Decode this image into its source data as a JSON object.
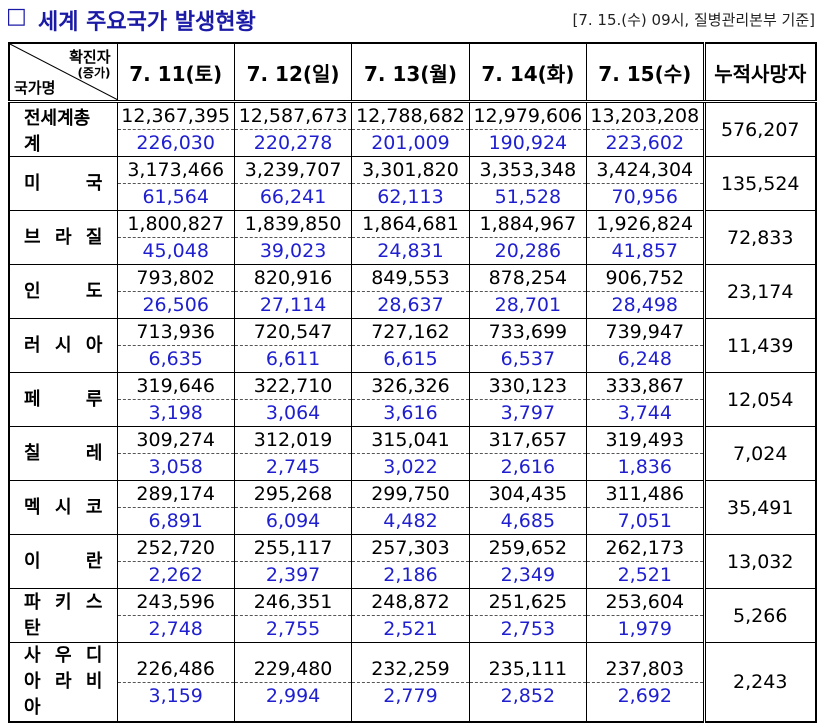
{
  "header": {
    "box": "□",
    "title": "세계 주요국가 발생현황",
    "source": "[7. 15.(수) 09시, 질병관리본부 기준]"
  },
  "table": {
    "corner": {
      "top": "확진자",
      "sub": "(증가)",
      "left": "국가명"
    },
    "columns": [
      "7. 11(토)",
      "7. 12(일)",
      "7. 13(월)",
      "7. 14(화)",
      "7. 15(수)"
    ],
    "death_column": "누적사망자",
    "rows": [
      {
        "name": "전세계총계",
        "totals": [
          "12,367,395",
          "12,587,673",
          "12,788,682",
          "12,979,606",
          "13,203,208"
        ],
        "increases": [
          "226,030",
          "220,278",
          "201,009",
          "190,924",
          "223,602"
        ],
        "deaths": "576,207"
      },
      {
        "name": "미 국",
        "totals": [
          "3,173,466",
          "3,239,707",
          "3,301,820",
          "3,353,348",
          "3,424,304"
        ],
        "increases": [
          "61,564",
          "66,241",
          "62,113",
          "51,528",
          "70,956"
        ],
        "deaths": "135,524"
      },
      {
        "name": "브 라 질",
        "totals": [
          "1,800,827",
          "1,839,850",
          "1,864,681",
          "1,884,967",
          "1,926,824"
        ],
        "increases": [
          "45,048",
          "39,023",
          "24,831",
          "20,286",
          "41,857"
        ],
        "deaths": "72,833"
      },
      {
        "name": "인 도",
        "totals": [
          "793,802",
          "820,916",
          "849,553",
          "878,254",
          "906,752"
        ],
        "increases": [
          "26,506",
          "27,114",
          "28,637",
          "28,701",
          "28,498"
        ],
        "deaths": "23,174"
      },
      {
        "name": "러 시 아",
        "totals": [
          "713,936",
          "720,547",
          "727,162",
          "733,699",
          "739,947"
        ],
        "increases": [
          "6,635",
          "6,611",
          "6,615",
          "6,537",
          "6,248"
        ],
        "deaths": "11,439"
      },
      {
        "name": "페 루",
        "totals": [
          "319,646",
          "322,710",
          "326,326",
          "330,123",
          "333,867"
        ],
        "increases": [
          "3,198",
          "3,064",
          "3,616",
          "3,797",
          "3,744"
        ],
        "deaths": "12,054"
      },
      {
        "name": "칠 레",
        "totals": [
          "309,274",
          "312,019",
          "315,041",
          "317,657",
          "319,493"
        ],
        "increases": [
          "3,058",
          "2,745",
          "3,022",
          "2,616",
          "1,836"
        ],
        "deaths": "7,024"
      },
      {
        "name": "멕 시 코",
        "totals": [
          "289,174",
          "295,268",
          "299,750",
          "304,435",
          "311,486"
        ],
        "increases": [
          "6,891",
          "6,094",
          "4,482",
          "4,685",
          "7,051"
        ],
        "deaths": "35,491"
      },
      {
        "name": "이 란",
        "totals": [
          "252,720",
          "255,117",
          "257,303",
          "259,652",
          "262,173"
        ],
        "increases": [
          "2,262",
          "2,397",
          "2,186",
          "2,349",
          "2,521"
        ],
        "deaths": "13,032"
      },
      {
        "name": "파 키 스 탄",
        "totals": [
          "243,596",
          "246,351",
          "248,872",
          "251,625",
          "253,604"
        ],
        "increases": [
          "2,748",
          "2,755",
          "2,521",
          "2,753",
          "1,979"
        ],
        "deaths": "5,266"
      },
      {
        "name": "사 우 디\n아 라 비 아",
        "totals": [
          "226,486",
          "229,480",
          "232,259",
          "235,111",
          "237,803"
        ],
        "increases": [
          "3,159",
          "2,994",
          "2,779",
          "2,852",
          "2,692"
        ],
        "deaths": "2,243"
      }
    ]
  }
}
